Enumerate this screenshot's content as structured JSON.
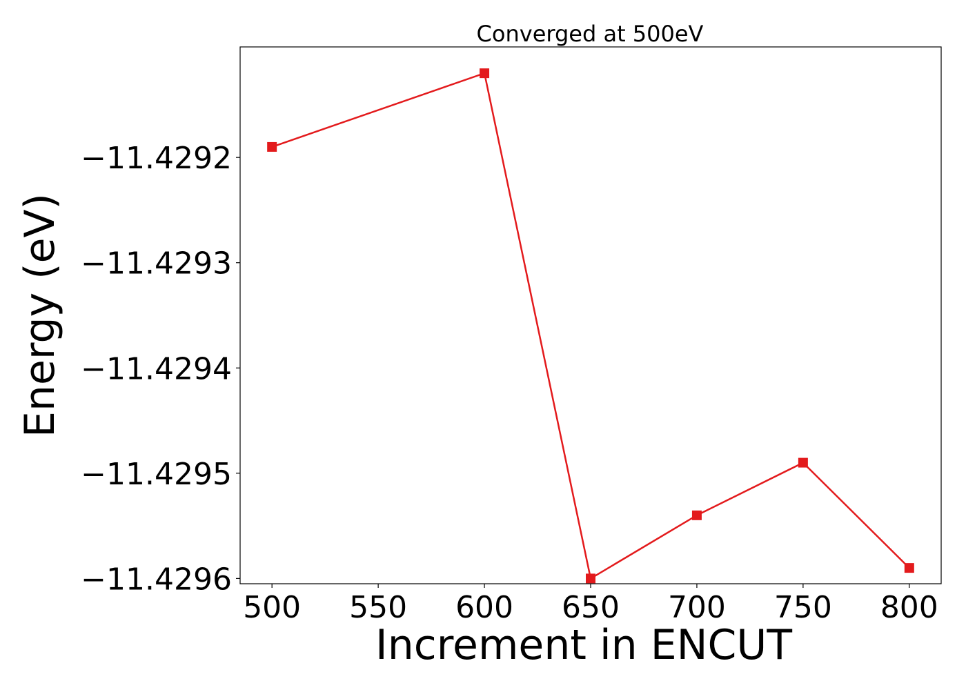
{
  "chart_data": {
    "type": "line",
    "title": "Converged at 500eV",
    "xlabel": "Increment in ENCUT",
    "ylabel": "Energy (eV)",
    "x": [
      500,
      600,
      650,
      700,
      750,
      800
    ],
    "series": [
      {
        "values": [
          -11.42919,
          -11.42912,
          -11.4296,
          -11.42954,
          -11.42949,
          -11.42959
        ],
        "color": "#e31a1c",
        "marker": "square"
      }
    ],
    "xlim": [
      485,
      815
    ],
    "ylim": [
      -11.429605,
      -11.429095
    ],
    "xticks": [
      500,
      550,
      600,
      650,
      700,
      750,
      800
    ],
    "xtick_labels": [
      "500",
      "550",
      "600",
      "650",
      "700",
      "750",
      "800"
    ],
    "yticks": [
      -11.4292,
      -11.4293,
      -11.4294,
      -11.4295,
      -11.4296
    ],
    "ytick_labels": [
      "−11.4292",
      "−11.4293",
      "−11.4294",
      "−11.4295",
      "−11.4296"
    ],
    "grid": false,
    "legend": "none"
  }
}
